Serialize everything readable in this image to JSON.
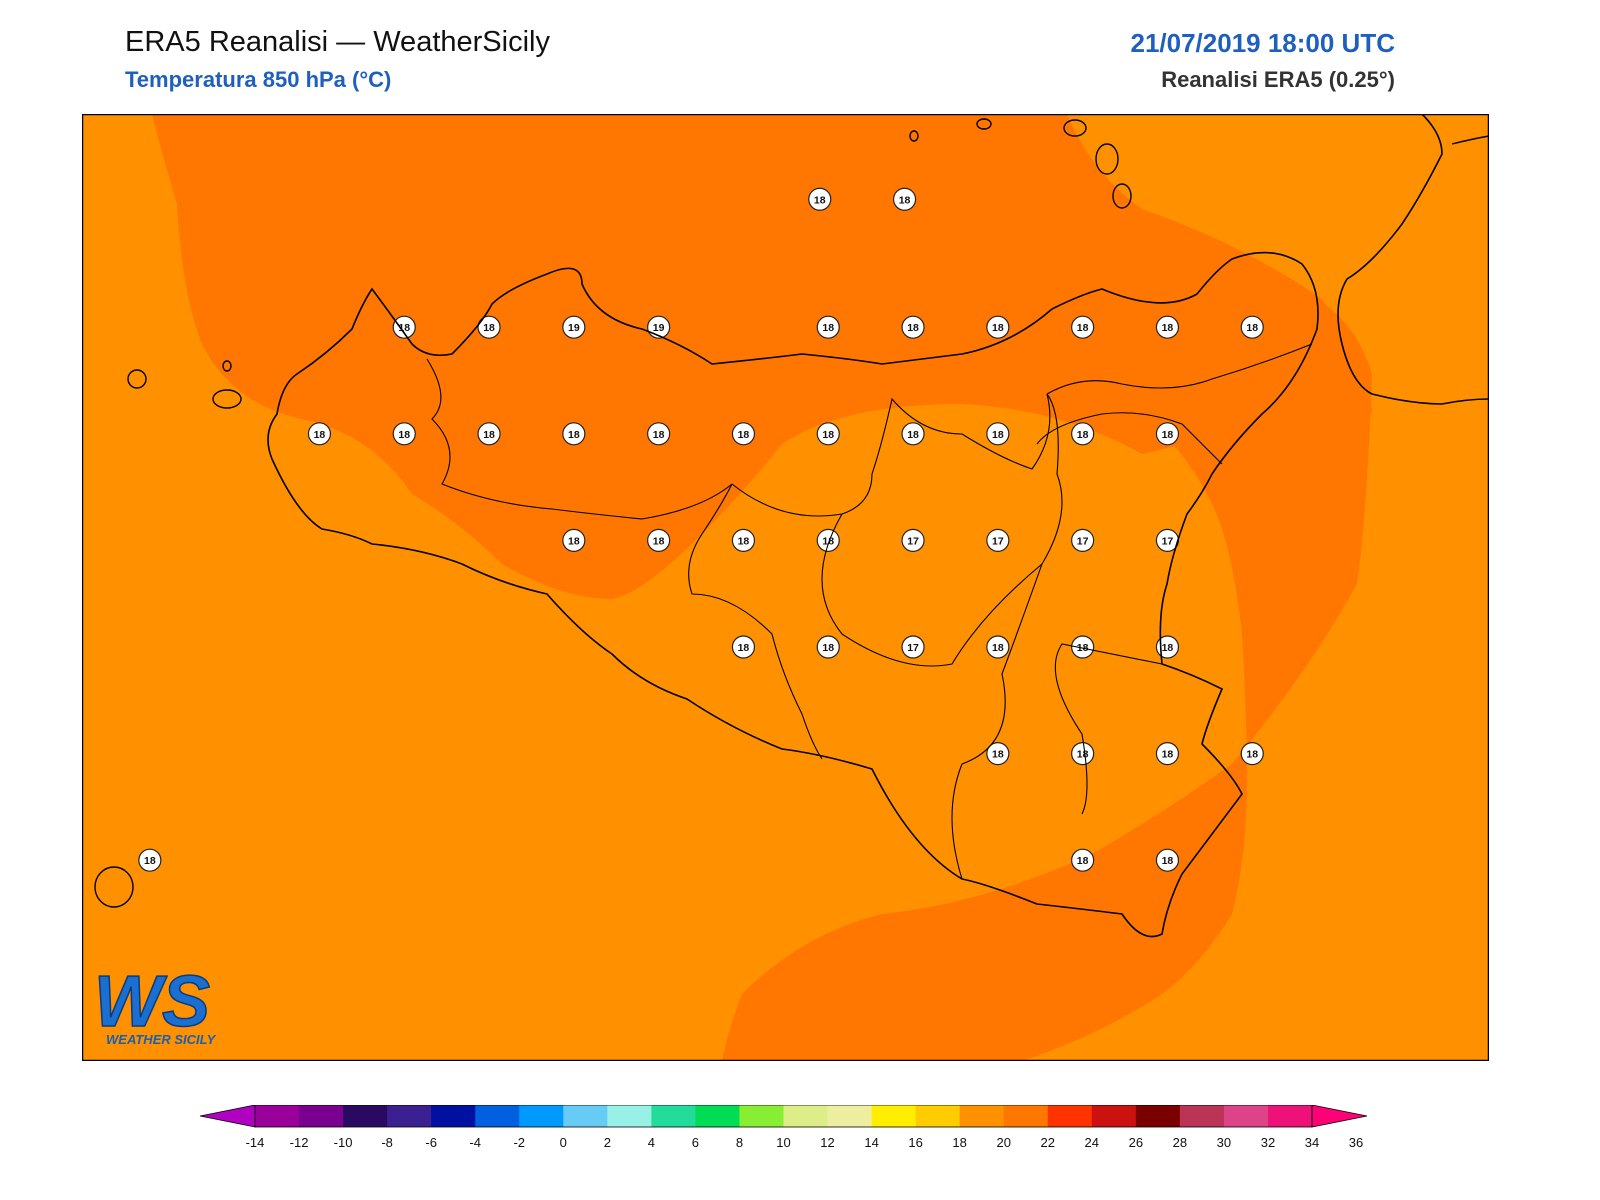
{
  "header": {
    "title": "ERA5 Reanalisi — WeatherSicily",
    "subtitle": "Temperatura 850 hPa (°C)",
    "datetime": "21/07/2019 18:00 UTC",
    "source": "Reanalisi ERA5 (0.25°)"
  },
  "logo": {
    "text": "WS",
    "brand": "WEATHER SICILY"
  },
  "colors": {
    "field_16_18": "#ff9000",
    "field_18_20": "#ff7700",
    "coast": "#000000",
    "title_blue": "#1f5fbf"
  },
  "colorbar": {
    "ticks": [
      "-14",
      "-12",
      "-10",
      "-8",
      "-6",
      "-4",
      "-2",
      "0",
      "2",
      "4",
      "6",
      "8",
      "10",
      "12",
      "14",
      "16",
      "18",
      "20",
      "22",
      "24",
      "26",
      "28",
      "30",
      "32",
      "34",
      "36"
    ],
    "colors": [
      "#b000c0",
      "#9a009a",
      "#7a0090",
      "#2a0a60",
      "#3a2090",
      "#0010a0",
      "#0060e0",
      "#0099ff",
      "#66ccf5",
      "#99f0e6",
      "#22dd99",
      "#00dd55",
      "#88ee33",
      "#ddee88",
      "#eeeea0",
      "#ffee00",
      "#ffcc00",
      "#ff9000",
      "#ff7700",
      "#ff3300",
      "#cc1111",
      "#7a0000",
      "#bb3355",
      "#dd4488",
      "#ee1177",
      "#ff0077"
    ]
  },
  "stations": [
    {
      "value": "18",
      "lon": 14.95,
      "lat": 38.85
    },
    {
      "value": "18",
      "lon": 15.45,
      "lat": 38.85
    },
    {
      "value": "18",
      "lon": 12.5,
      "lat": 38.25
    },
    {
      "value": "18",
      "lon": 13.0,
      "lat": 38.25
    },
    {
      "value": "19",
      "lon": 13.5,
      "lat": 38.25
    },
    {
      "value": "19",
      "lon": 14.0,
      "lat": 38.25
    },
    {
      "value": "18",
      "lon": 15.0,
      "lat": 38.25
    },
    {
      "value": "18",
      "lon": 15.5,
      "lat": 38.25
    },
    {
      "value": "18",
      "lon": 16.0,
      "lat": 38.25
    },
    {
      "value": "18",
      "lon": 16.5,
      "lat": 38.25
    },
    {
      "value": "18",
      "lon": 17.0,
      "lat": 38.25
    },
    {
      "value": "18",
      "lon": 17.5,
      "lat": 38.25
    },
    {
      "value": "18",
      "lon": 12.0,
      "lat": 37.75
    },
    {
      "value": "18",
      "lon": 12.5,
      "lat": 37.75
    },
    {
      "value": "18",
      "lon": 13.0,
      "lat": 37.75
    },
    {
      "value": "18",
      "lon": 13.5,
      "lat": 37.75
    },
    {
      "value": "18",
      "lon": 14.0,
      "lat": 37.75
    },
    {
      "value": "18",
      "lon": 14.5,
      "lat": 37.75
    },
    {
      "value": "18",
      "lon": 15.0,
      "lat": 37.75
    },
    {
      "value": "18",
      "lon": 15.5,
      "lat": 37.75
    },
    {
      "value": "18",
      "lon": 16.0,
      "lat": 37.75
    },
    {
      "value": "18",
      "lon": 16.5,
      "lat": 37.75
    },
    {
      "value": "18",
      "lon": 17.0,
      "lat": 37.75
    },
    {
      "value": "18",
      "lon": 13.5,
      "lat": 37.25
    },
    {
      "value": "18",
      "lon": 14.0,
      "lat": 37.25
    },
    {
      "value": "18",
      "lon": 14.5,
      "lat": 37.25
    },
    {
      "value": "18",
      "lon": 15.0,
      "lat": 37.25
    },
    {
      "value": "17",
      "lon": 15.5,
      "lat": 37.25
    },
    {
      "value": "17",
      "lon": 16.0,
      "lat": 37.25
    },
    {
      "value": "17",
      "lon": 16.5,
      "lat": 37.25
    },
    {
      "value": "17",
      "lon": 17.0,
      "lat": 37.25
    },
    {
      "value": "18",
      "lon": 14.5,
      "lat": 36.75
    },
    {
      "value": "18",
      "lon": 15.0,
      "lat": 36.75
    },
    {
      "value": "17",
      "lon": 15.5,
      "lat": 36.75
    },
    {
      "value": "18",
      "lon": 16.0,
      "lat": 36.75
    },
    {
      "value": "18",
      "lon": 16.5,
      "lat": 36.75
    },
    {
      "value": "18",
      "lon": 17.0,
      "lat": 36.75
    },
    {
      "value": "18",
      "lon": 16.0,
      "lat": 36.25
    },
    {
      "value": "18",
      "lon": 16.5,
      "lat": 36.25
    },
    {
      "value": "18",
      "lon": 17.0,
      "lat": 36.25
    },
    {
      "value": "18",
      "lon": 17.5,
      "lat": 36.25
    },
    {
      "value": "18",
      "lon": 11.0,
      "lat": 35.75
    },
    {
      "value": "18",
      "lon": 16.5,
      "lat": 35.75
    },
    {
      "value": "18",
      "lon": 17.0,
      "lat": 35.75
    }
  ]
}
